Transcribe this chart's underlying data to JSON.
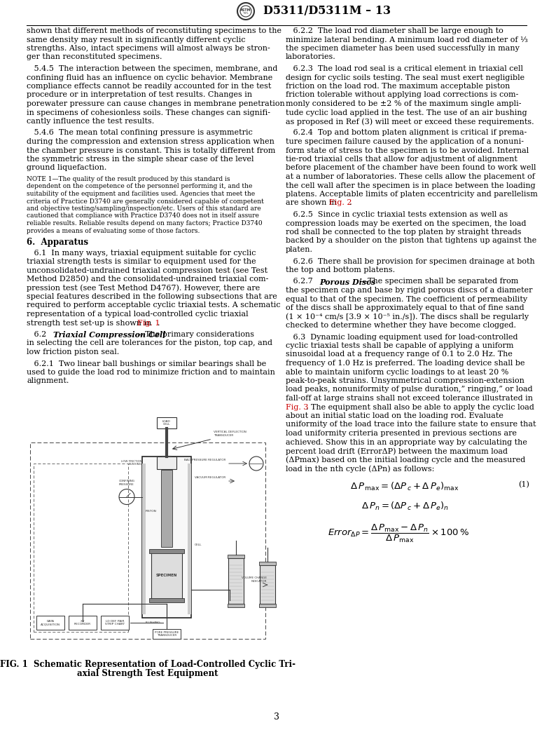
{
  "title": "D5311/D5311M – 13",
  "page_number": "3",
  "bg_color": "#ffffff",
  "text_color": "#000000",
  "red_color": "#cc0000",
  "left_col_lines": [
    "shown that different methods of reconstituting specimens to the",
    "same density may result in significantly different cyclic",
    "strengths. Also, intact specimens will almost always be stron-",
    "ger than reconstituted specimens.",
    "",
    "   5.4.5  The interaction between the specimen, membrane, and",
    "confining fluid has an influence on cyclic behavior. Membrane",
    "compliance effects cannot be readily accounted for in the test",
    "procedure or in interpretation of test results. Changes in",
    "porewater pressure can cause changes in membrane penetration",
    "in specimens of cohesionless soils. These changes can signifi-",
    "cantly influence the test results.",
    "",
    "   5.4.6  The mean total confining pressure is asymmetric",
    "during the compression and extension stress application when",
    "the chamber pressure is constant. This is totally different from",
    "the symmetric stress in the simple shear case of the level",
    "ground liquefaction.",
    "",
    "NOTE 1—The quality of the result produced by this standard is",
    "dependent on the competence of the personnel performing it, and the",
    "suitability of the equipment and facilities used. Agencies that meet the",
    "criteria of Practice D3740 are generally considered capable of competent",
    "and objective testing/sampling/inspection/etc. Users of this standard are",
    "cautioned that compliance with Practice D3740 does not in itself assure",
    "reliable results. Reliable results depend on many factors; Practice D3740",
    "provides a means of evaluating some of those factors.",
    "",
    "6.  Apparatus",
    "",
    "   6.1  In many ways, triaxial equipment suitable for cyclic",
    "triaxial strength tests is similar to equipment used for the",
    "unconsolidated-undrained triaxial compression test (see Test",
    "Method D2850) and the consolidated-undrained triaxial com-",
    "pression test (see Test Method D4767). However, there are",
    "special features described in the following subsections that are",
    "required to perform acceptable cyclic triaxial tests. A schematic",
    "representation of a typical load-controlled cyclic triaxial",
    "strength test set-up is shown in |Fig. 1|.",
    "",
    "   6.2  |Triaxial Compression Cell|—The primary considerations",
    "in selecting the cell are tolerances for the piston, top cap, and",
    "low friction piston seal.",
    "",
    "   6.2.1  Two linear ball bushings or similar bearings shall be",
    "used to guide the load rod to minimize friction and to maintain",
    "alignment."
  ],
  "right_col_lines": [
    "   6.2.2  The load rod diameter shall be large enough to",
    "minimize lateral bending. A minimum load rod diameter of ⅓",
    "the specimen diameter has been used successfully in many",
    "laboratories.",
    "",
    "   6.2.3  The load rod seal is a critical element in triaxial cell",
    "design for cyclic soils testing. The seal must exert negligible",
    "friction on the load rod. The maximum acceptable piston",
    "friction tolerable without applying load corrections is com-",
    "monly considered to be ±2 % of the maximum single ampli-",
    "tude cyclic load applied in the test. The use of an air bushing",
    "as proposed in Ref (3) will meet or exceed these requirements.",
    "",
    "   6.2.4  Top and bottom platen alignment is critical if prema-",
    "ture specimen failure caused by the application of a nonuni-",
    "form state of stress to the specimen is to be avoided. Internal",
    "tie-rod triaxial cells that allow for adjustment of alignment",
    "before placement of the chamber have been found to work well",
    "at a number of laboratories. These cells allow the placement of",
    "the cell wall after the specimen is in place between the loading",
    "platens. Acceptable limits of platen eccentricity and parellelism",
    "are shown in |Fig. 2|.",
    "",
    "   6.2.5  Since in cyclic triaxial tests extension as well as",
    "compression loads may be exerted on the specimen, the load",
    "rod shall be connected to the top platen by straight threads",
    "backed by a shoulder on the piston that tightens up against the",
    "platen.",
    "",
    "   6.2.6  There shall be provision for specimen drainage at both",
    "the top and bottom platens.",
    "",
    "   6.2.7  |Porous Discs|—The specimen shall be separated from",
    "the specimen cap and base by rigid porous discs of a diameter",
    "equal to that of the specimen. The coefficient of permeability",
    "of the discs shall be approximately equal to that of fine sand",
    "(1 × 10⁻⁴ cm/s [3.9 × 10⁻⁵ in./s]). The discs shall be regularly",
    "checked to determine whether they have become clogged.",
    "",
    "   6.3  Dynamic loading equipment used for load-controlled",
    "cyclic triaxial tests shall be capable of applying a uniform",
    "sinusoidal load at a frequency range of 0.1 to 2.0 Hz. The",
    "frequency of 1.0 Hz is preferred. The loading device shall be",
    "able to maintain uniform cyclic loadings to at least 20 %",
    "peak-to-peak strains. Unsymmetrical compression-extension",
    "load peaks, nonuniformity of pulse duration,” ringing,” or load",
    "fall-off at large strains shall not exceed tolerance illustrated in",
    "|Fig. 3|. The equipment shall also be able to apply the cyclic load",
    "about an initial static load on the loading rod. Evaluate",
    "uniformity of the load trace into the failure state to ensure that",
    "load uniformity criteria presented in previous sections are",
    "achieved. Show this in an appropriate way by calculating the",
    "percent load drift (ErrorΔP) between the maximum load",
    "(ΔPmax) based on the initial loading cycle and the measured",
    "load in the nth cycle (ΔPn) as follows:"
  ],
  "note_lines_indices": [
    19,
    20,
    21,
    22,
    23,
    24,
    25,
    26
  ],
  "heading_lines_indices": [
    28
  ],
  "italic_lines_indices": [
    40,
    32
  ],
  "figure_caption": "FIG. 1  Schematic Representation of Load-Controlled Cyclic Tri-\n       axial Strength Test Equipment"
}
